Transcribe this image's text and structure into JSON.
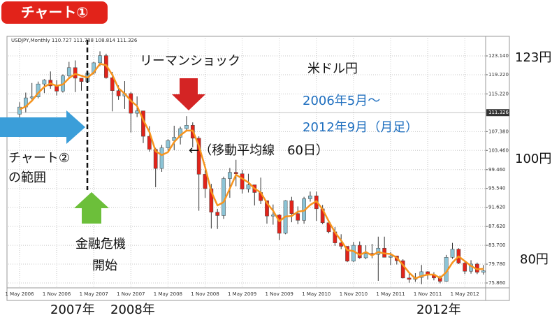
{
  "header": "チャート①",
  "annotations": {
    "lehman": "リーマンショック",
    "pair": "米ドル円",
    "period_start": "2006年5月〜",
    "period_end": "2012年9月（月足）",
    "ma_note": "←（移動平均線　60日）",
    "chart2_range_1": "チャート②",
    "chart2_range_2": "の範囲",
    "crisis_1": "金融危機",
    "crisis_2": "開始",
    "yen_123": "123円",
    "yen_100": "100円",
    "yen_80": "80円",
    "year_2007": "2007年",
    "year_2008": "2008年",
    "year_2012": "2012年"
  },
  "chart_data": {
    "type": "candlestick",
    "title": "USDJPY,Monthly  110.727 111.788 108.814 111.326",
    "categories": [
      "1 May 2006",
      null,
      null,
      null,
      null,
      null,
      "1 Nov 2006",
      null,
      null,
      null,
      null,
      null,
      "1 May 2007",
      null,
      null,
      null,
      null,
      null,
      "1 Nov 2007",
      null,
      null,
      null,
      null,
      null,
      "1 May 2008",
      null,
      null,
      null,
      null,
      null,
      "1 Nov 2008",
      null,
      null,
      null,
      null,
      null,
      "1 May 2009",
      null,
      null,
      null,
      null,
      null,
      "1 Nov 2009",
      null,
      null,
      null,
      null,
      null,
      "1 May 2010",
      null,
      null,
      null,
      null,
      null,
      "1 Nov 2010",
      null,
      null,
      null,
      null,
      null,
      "1 May 2011",
      null,
      null,
      null,
      null,
      null,
      "1 Nov 2011",
      null,
      null,
      null,
      null,
      null,
      "1 May 2012",
      null,
      null,
      null
    ],
    "open": [
      111.0,
      112.5,
      114.4,
      114.6,
      117.3,
      118.1,
      116.9,
      115.8,
      119.0,
      120.7,
      118.5,
      117.8,
      119.6,
      121.7,
      123.2,
      118.6,
      115.9,
      114.8,
      115.3,
      111.2,
      111.7,
      106.4,
      103.7,
      99.7,
      104.0,
      105.5,
      106.2,
      108.0,
      108.7,
      106.0,
      98.5,
      95.5,
      90.6,
      89.9,
      97.6,
      98.9,
      98.6,
      95.4,
      96.3,
      94.7,
      93.0,
      89.8,
      90.0,
      86.2,
      93.0,
      90.3,
      88.9,
      93.4,
      94.0,
      91.3,
      88.4,
      86.5,
      84.2,
      83.5,
      80.4,
      83.7,
      81.1,
      82.0,
      81.8,
      83.1,
      81.2,
      81.5,
      80.5,
      76.9,
      76.6,
      77.0,
      78.2,
      77.6,
      76.9,
      76.2,
      81.2,
      82.9,
      80.0,
      78.3,
      79.8,
      78.1
    ],
    "high": [
      113.5,
      115.5,
      117.5,
      117.8,
      118.3,
      119.9,
      118.1,
      119.3,
      121.9,
      122.2,
      118.5,
      119.8,
      121.9,
      124.1,
      123.6,
      119.8,
      117.0,
      117.9,
      115.6,
      114.7,
      111.6,
      108.5,
      104.0,
      104.6,
      105.8,
      108.6,
      108.4,
      110.6,
      109.3,
      106.4,
      100.6,
      96.5,
      91.3,
      98.0,
      99.8,
      101.5,
      99.4,
      98.6,
      96.0,
      97.8,
      93.0,
      92.2,
      90.2,
      93.1,
      93.8,
      91.8,
      93.8,
      94.9,
      94.9,
      92.1,
      88.9,
      87.5,
      86.0,
      83.5,
      84.4,
      84.5,
      83.7,
      84.0,
      85.5,
      85.5,
      82.3,
      81.5,
      80.8,
      77.8,
      77.9,
      79.6,
      78.3,
      78.1,
      77.4,
      81.7,
      84.2,
      83.1,
      80.6,
      80.6,
      80.1,
      79.6
    ],
    "low": [
      108.9,
      111.4,
      113.6,
      114.3,
      115.4,
      116.3,
      114.9,
      115.5,
      118.5,
      115.6,
      115.9,
      117.6,
      119.3,
      121.0,
      118.4,
      111.6,
      114.0,
      112.1,
      107.2,
      110.4,
      105.0,
      103.2,
      95.8,
      99.0,
      103.1,
      103.5,
      104.7,
      107.7,
      104.1,
      90.9,
      93.6,
      87.2,
      87.1,
      89.2,
      93.6,
      96.0,
      94.5,
      94.7,
      92.0,
      92.3,
      88.2,
      88.0,
      84.8,
      86.0,
      88.5,
      88.1,
      88.2,
      92.8,
      88.8,
      88.1,
      86.2,
      83.6,
      82.9,
      80.2,
      80.2,
      80.9,
      80.8,
      81.0,
      76.3,
      81.2,
      79.6,
      79.7,
      76.8,
      75.9,
      76.1,
      75.6,
      76.6,
      76.4,
      75.8,
      76.1,
      80.9,
      79.8,
      77.7,
      77.8,
      77.7,
      77.6
    ],
    "close": [
      112.5,
      114.4,
      114.6,
      117.3,
      118.1,
      116.9,
      115.8,
      119.0,
      120.7,
      118.5,
      117.8,
      119.6,
      121.7,
      123.2,
      118.6,
      115.9,
      114.8,
      115.3,
      111.2,
      111.7,
      106.4,
      103.7,
      99.7,
      104.0,
      105.5,
      106.2,
      108.0,
      108.7,
      106.0,
      98.5,
      95.5,
      90.6,
      89.9,
      97.6,
      98.9,
      98.6,
      95.4,
      96.3,
      94.7,
      93.0,
      89.8,
      90.0,
      86.2,
      93.0,
      90.3,
      88.9,
      93.4,
      94.0,
      91.3,
      88.4,
      86.5,
      84.2,
      83.5,
      80.4,
      83.7,
      81.1,
      82.0,
      81.8,
      83.1,
      81.2,
      81.5,
      80.5,
      76.9,
      76.6,
      77.0,
      78.2,
      77.6,
      76.9,
      76.2,
      81.2,
      82.9,
      80.0,
      78.3,
      79.8,
      78.1,
      78.4
    ],
    "up_color": "#8cc4d6",
    "down_color": "#e2231a",
    "moving_average": {
      "color": "#f7941d",
      "values": [
        112.0,
        112.6,
        113.8,
        115.4,
        116.7,
        117.4,
        116.9,
        117.2,
        118.5,
        119.4,
        119.0,
        118.6,
        119.7,
        121.5,
        121.2,
        119.2,
        116.4,
        115.3,
        113.8,
        112.7,
        109.8,
        107.3,
        103.3,
        102.5,
        103.1,
        105.2,
        106.6,
        107.6,
        107.6,
        104.4,
        100.0,
        94.9,
        92.0,
        92.7,
        95.5,
        98.4,
        97.6,
        96.8,
        95.5,
        94.7,
        92.5,
        90.9,
        88.7,
        89.7,
        89.8,
        90.7,
        90.9,
        92.1,
        92.9,
        91.2,
        88.7,
        86.4,
        84.7,
        82.7,
        82.5,
        81.7,
        82.3,
        81.6,
        82.3,
        82.0,
        81.9,
        81.1,
        79.6,
        78.0,
        76.8,
        77.3,
        77.6,
        77.6,
        76.9,
        78.1,
        80.1,
        81.4,
        80.4,
        79.4,
        78.7,
        78.8
      ]
    },
    "ylim": [
      74.84,
      126.78
    ],
    "yticks": [
      {
        "value": 123.14,
        "label": "123.140"
      },
      {
        "value": 119.22,
        "label": "119.220"
      },
      {
        "value": 115.22,
        "label": "115.220"
      },
      {
        "value": 107.38,
        "label": "107.380"
      },
      {
        "value": 103.46,
        "label": "103.460"
      },
      {
        "value": 99.46,
        "label": "99.460"
      },
      {
        "value": 95.54,
        "label": "95.540"
      },
      {
        "value": 91.62,
        "label": "91.620"
      },
      {
        "value": 87.62,
        "label": "87.620"
      },
      {
        "value": 83.7,
        "label": "83.700"
      },
      {
        "value": 79.78,
        "label": "79.780"
      },
      {
        "value": 75.86,
        "label": "75.860"
      }
    ],
    "price_marker": {
      "value": 111.326,
      "label": "111.326"
    },
    "grid": true
  }
}
